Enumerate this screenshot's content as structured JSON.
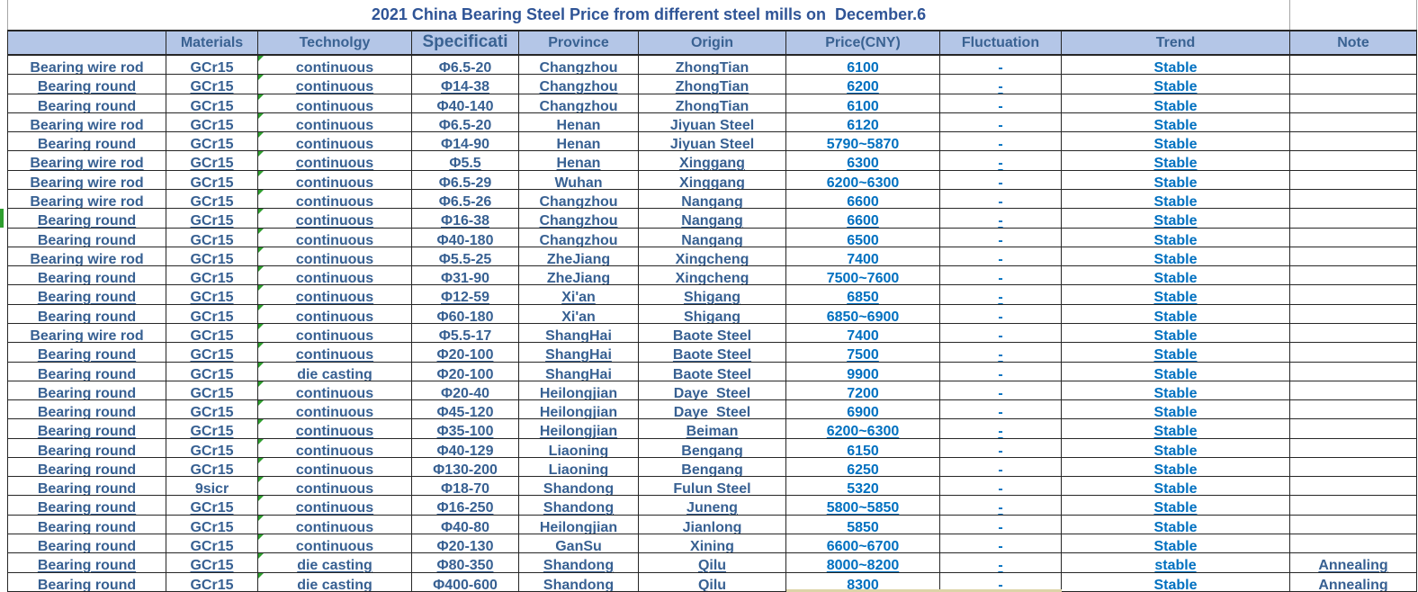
{
  "title": "2021 China Bearing Steel Price from different steel mills on  December.6",
  "columns": [
    "",
    "Materials",
    "Technolgy",
    "Specificati",
    "Province",
    "Origin",
    "Price(CNY)",
    "Fluctuation",
    "Trend",
    "Note"
  ],
  "rows": [
    {
      "product": "Bearing wire rod",
      "materials": "GCr15",
      "technology": "continuous",
      "specification": "Φ6.5-20",
      "province": "Changzhou",
      "origin": "ZhongTian",
      "price": "6100",
      "fluctuation": "-",
      "trend": "Stable",
      "note": ""
    },
    {
      "product": "Bearing round",
      "materials": "GCr15",
      "technology": "continuous",
      "specification": "Φ14-38",
      "province": "Changzhou",
      "origin": "ZhongTian",
      "price": "6200",
      "fluctuation": "-",
      "trend": "Stable",
      "note": ""
    },
    {
      "product": "Bearing round",
      "materials": "GCr15",
      "technology": "continuous",
      "specification": "Φ40-140",
      "province": "Changzhou",
      "origin": "ZhongTian",
      "price": "6100",
      "fluctuation": "-",
      "trend": "Stable",
      "note": ""
    },
    {
      "product": "Bearing wire rod",
      "materials": "GCr15",
      "technology": "continuous",
      "specification": "Φ6.5-20",
      "province": "Henan",
      "origin": "Jiyuan Steel",
      "price": "6120",
      "fluctuation": "-",
      "trend": "Stable",
      "note": ""
    },
    {
      "product": "Bearing round",
      "materials": "GCr15",
      "technology": "continuous",
      "specification": "Φ14-90",
      "province": "Henan",
      "origin": "Jiyuan Steel",
      "price": "5790~5870",
      "fluctuation": "-",
      "trend": "Stable",
      "note": ""
    },
    {
      "product": "Bearing wire rod",
      "materials": "GCr15",
      "technology": "continuous",
      "specification": "Φ5.5",
      "province": "Henan",
      "origin": "Xinggang",
      "price": "6300",
      "fluctuation": "-",
      "trend": "Stable",
      "note": ""
    },
    {
      "product": "Bearing wire rod",
      "materials": "GCr15",
      "technology": "continuous",
      "specification": "Φ6.5-29",
      "province": "Wuhan",
      "origin": "Xinggang",
      "price": "6200~6300",
      "fluctuation": "-",
      "trend": "Stable",
      "note": ""
    },
    {
      "product": "Bearing wire rod",
      "materials": "GCr15",
      "technology": "continuous",
      "specification": "Φ6.5-26",
      "province": "Changzhou",
      "origin": "Nangang",
      "price": "6600",
      "fluctuation": "-",
      "trend": "Stable",
      "note": ""
    },
    {
      "product": "Bearing round",
      "materials": "GCr15",
      "technology": "continuous",
      "specification": "Φ16-38",
      "province": "Changzhou",
      "origin": "Nangang",
      "price": "6600",
      "fluctuation": "-",
      "trend": "Stable",
      "note": "",
      "marker": true
    },
    {
      "product": "Bearing round",
      "materials": "GCr15",
      "technology": "continuous",
      "specification": "Φ40-180",
      "province": "Changzhou",
      "origin": "Nangang",
      "price": "6500",
      "fluctuation": "-",
      "trend": "Stable",
      "note": ""
    },
    {
      "product": "Bearing wire rod",
      "materials": "GCr15",
      "technology": "continuous",
      "specification": "Φ5.5-25",
      "province": "ZheJiang",
      "origin": "Xingcheng",
      "price": "7400",
      "fluctuation": "-",
      "trend": "Stable",
      "note": ""
    },
    {
      "product": "Bearing round",
      "materials": "GCr15",
      "technology": "continuous",
      "specification": "Φ31-90",
      "province": "ZheJiang",
      "origin": "Xingcheng",
      "price": "7500~7600",
      "fluctuation": "-",
      "trend": "Stable",
      "note": ""
    },
    {
      "product": "Bearing round",
      "materials": "GCr15",
      "technology": "continuous",
      "specification": "Φ12-59",
      "province": "Xi'an",
      "origin": "Shigang",
      "price": "6850",
      "fluctuation": "-",
      "trend": "Stable",
      "note": ""
    },
    {
      "product": "Bearing round",
      "materials": "GCr15",
      "technology": "continuous",
      "specification": "Φ60-180",
      "province": "Xi'an",
      "origin": "Shigang",
      "price": "6850~6900",
      "fluctuation": "-",
      "trend": "Stable",
      "note": ""
    },
    {
      "product": "Bearing wire rod",
      "materials": "GCr15",
      "technology": "continuous",
      "specification": "Φ5.5-17",
      "province": "ShangHai",
      "origin": "Baote Steel",
      "price": "7400",
      "fluctuation": "-",
      "trend": "Stable",
      "note": ""
    },
    {
      "product": "Bearing round",
      "materials": "GCr15",
      "technology": "continuous",
      "specification": "Φ20-100",
      "province": "ShangHai",
      "origin": "Baote Steel",
      "price": "7500",
      "fluctuation": "-",
      "trend": "Stable",
      "note": ""
    },
    {
      "product": "Bearing round",
      "materials": "GCr15",
      "technology": "die casting",
      "specification": "Φ20-100",
      "province": "ShangHai",
      "origin": "Baote Steel",
      "price": "9900",
      "fluctuation": "-",
      "trend": "Stable",
      "note": ""
    },
    {
      "product": "Bearing round",
      "materials": "GCr15",
      "technology": "continuous",
      "specification": "Φ20-40",
      "province": "Heilongjian",
      "origin": "Daye  Steel",
      "price": "7200",
      "fluctuation": "-",
      "trend": "Stable",
      "note": ""
    },
    {
      "product": "Bearing round",
      "materials": "GCr15",
      "technology": "continuous",
      "specification": "Φ45-120",
      "province": "Heilongjian",
      "origin": "Daye  Steel",
      "price": "6900",
      "fluctuation": "-",
      "trend": "Stable",
      "note": ""
    },
    {
      "product": "Bearing round",
      "materials": "GCr15",
      "technology": "continuous",
      "specification": "Φ35-100",
      "province": "Heilongjian",
      "origin": "Beiman",
      "price": "6200~6300",
      "fluctuation": "-",
      "trend": "Stable",
      "note": ""
    },
    {
      "product": "Bearing round",
      "materials": "GCr15",
      "technology": "continuous",
      "specification": "Φ40-129",
      "province": "Liaoning",
      "origin": "Bengang",
      "price": "6150",
      "fluctuation": "-",
      "trend": "Stable",
      "note": ""
    },
    {
      "product": "Bearing round",
      "materials": "GCr15",
      "technology": "continuous",
      "specification": "Φ130-200",
      "province": "Liaoning",
      "origin": "Bengang",
      "price": "6250",
      "fluctuation": "-",
      "trend": "Stable",
      "note": ""
    },
    {
      "product": "Bearing round",
      "materials": "9sicr",
      "technology": "continuous",
      "specification": "Φ18-70",
      "province": "Shandong",
      "origin": "Fulun Steel",
      "price": "5320",
      "fluctuation": "-",
      "trend": "Stable",
      "note": ""
    },
    {
      "product": "Bearing round",
      "materials": "GCr15",
      "technology": "continuous",
      "specification": "Φ16-250",
      "province": "Shandong",
      "origin": "Juneng",
      "price": "5800~5850",
      "fluctuation": "-",
      "trend": "Stable",
      "note": ""
    },
    {
      "product": "Bearing round",
      "materials": "GCr15",
      "technology": "continuous",
      "specification": "Φ40-80",
      "province": "Heilongjian",
      "origin": "Jianlong",
      "price": "5850",
      "fluctuation": "-",
      "trend": "Stable",
      "note": ""
    },
    {
      "product": "Bearing round",
      "materials": "GCr15",
      "technology": "continuous",
      "specification": "Φ20-130",
      "province": "GanSu",
      "origin": "Xining",
      "price": "6600~6700",
      "fluctuation": "-",
      "trend": "Stable",
      "note": ""
    },
    {
      "product": "Bearing round",
      "materials": "GCr15",
      "technology": "die casting",
      "specification": "Φ80-350",
      "province": "Shandong",
      "origin": "Qilu",
      "price": "8000~8200",
      "fluctuation": "-",
      "trend": "stable",
      "note": "Annealing"
    },
    {
      "product": "Bearing round",
      "materials": "GCr15",
      "technology": "die casting",
      "specification": "Φ400-600",
      "province": "Shandong",
      "origin": "Qilu",
      "price": "8300",
      "fluctuation": "-",
      "trend": "Stable",
      "note": "Annealing"
    }
  ],
  "colors": {
    "header_bg": "#b4c6e7",
    "head_text": "#3a6292",
    "steel_text": "#376092",
    "bright_blue": "#0070c0",
    "title_text": "#2f5496",
    "marker_green": "#2e9e2e",
    "strip_tan": "#ddd4a8"
  }
}
